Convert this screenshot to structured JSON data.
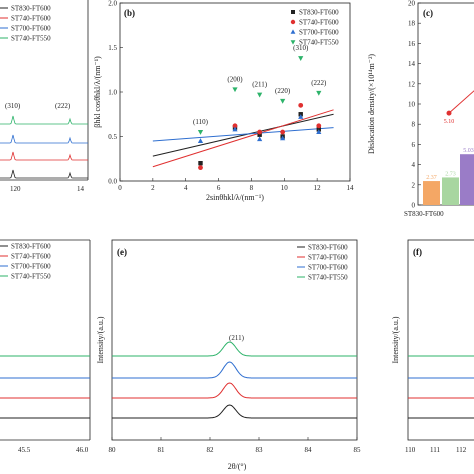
{
  "figure": {
    "panels": {
      "a": {
        "x_ticks": [
          "120",
          "14"
        ],
        "legend": [
          "ST830-FT600",
          "ST740-FT600",
          "ST700-FT600",
          "ST740-FT550"
        ],
        "peak_labels": [
          "(310)",
          "(222)"
        ]
      },
      "b": {
        "label": "(b)",
        "xlabel": "2sinθhkl/λ/(nm⁻¹)",
        "ylabel": "βhkl cosθhkl/λ/(nm⁻¹)",
        "peak_labels": [
          "(110)",
          "(200)",
          "(211)",
          "(220)",
          "(310)",
          "(222)"
        ]
      },
      "c": {
        "label": "(c)",
        "ylabel": "Dislocation density/(×10¹⁴m⁻²)",
        "y_ticks": [
          "0",
          "2",
          "4",
          "6",
          "8",
          "10",
          "12",
          "14",
          "16",
          "18",
          "20"
        ],
        "x_tick": "ST830-FT600"
      },
      "d": {
        "legend": [
          "ST830-FT600",
          "ST740-FT600",
          "ST700-FT600",
          "ST740-FT550"
        ],
        "x_ticks": [
          "45.5",
          "46.0"
        ]
      },
      "e": {
        "label": "(e)",
        "ylabel": "Intensity/(a.u.)",
        "xlabel": "2θ/(°)",
        "x_ticks": [
          "80",
          "81",
          "82",
          "83",
          "84",
          "85"
        ],
        "legend": [
          "ST830-FT600",
          "ST740-FT600",
          "ST700-FT600",
          "ST740-FT550"
        ],
        "peak_label": "(211)"
      },
      "f": {
        "label": "(f)",
        "ylabel": "Intensity/(a.u.)",
        "x_ticks": [
          "110",
          "111",
          "112"
        ]
      }
    }
  },
  "colors": {
    "ST830-FT600": "#222222",
    "ST740-FT600": "#e03030",
    "ST700-FT600": "#2f6fd0",
    "ST740-FT550": "#2db36a",
    "bar_orange": "#f4a765",
    "bar_green": "#a8d6a0",
    "bar_purple": "#9a7cc7"
  },
  "chart_data": [
    {
      "type": "scatter",
      "panel": "b",
      "xlim": [
        0,
        14
      ],
      "ylim": [
        0,
        2.0
      ],
      "x_ticks": [
        0,
        2,
        4,
        6,
        8,
        10,
        12,
        14
      ],
      "y_ticks": [
        0.0,
        0.5,
        1.0,
        1.5,
        2.0
      ],
      "legend_position": "top-right",
      "grid": false,
      "series": [
        {
          "name": "ST830-FT600",
          "marker": "square",
          "x": [
            4.9,
            7.0,
            8.5,
            9.9,
            11.0,
            12.1
          ],
          "y": [
            0.2,
            0.6,
            0.52,
            0.5,
            0.75,
            0.58
          ],
          "fit": [
            [
              2,
              0.28
            ],
            [
              13,
              0.75
            ]
          ]
        },
        {
          "name": "ST740-FT600",
          "marker": "circle",
          "x": [
            4.9,
            7.0,
            8.5,
            9.9,
            11.0,
            12.1
          ],
          "y": [
            0.15,
            0.62,
            0.55,
            0.55,
            0.85,
            0.62
          ],
          "fit": [
            [
              2,
              0.16
            ],
            [
              13,
              0.8
            ]
          ]
        },
        {
          "name": "ST700-FT600",
          "marker": "triangle-up",
          "x": [
            4.9,
            7.0,
            8.5,
            9.9,
            11.0,
            12.1
          ],
          "y": [
            0.45,
            0.58,
            0.47,
            0.48,
            0.72,
            0.55
          ],
          "fit": [
            [
              2,
              0.45
            ],
            [
              13,
              0.6
            ]
          ]
        },
        {
          "name": "ST740-FT550",
          "marker": "triangle-down",
          "x": [
            4.9,
            7.0,
            8.5,
            9.9,
            11.0,
            12.1
          ],
          "y": [
            0.55,
            1.03,
            0.97,
            0.9,
            1.38,
            0.99
          ],
          "fit": null
        }
      ]
    },
    {
      "type": "bar",
      "panel": "c",
      "ylim": [
        0,
        20
      ],
      "categories": [
        "ST830-FT600"
      ],
      "bars": [
        {
          "label": "2.37",
          "value": 2.37,
          "color": "bar_orange"
        },
        {
          "label": "2.73",
          "value": 2.73,
          "color": "bar_green"
        },
        {
          "label": "5.03",
          "value": 5.03,
          "color": "bar_purple"
        }
      ],
      "line_points": [
        {
          "label": "5.10",
          "value": 9.1,
          "pos": 0.5
        },
        {
          "label": "",
          "value": 12.1,
          "pos": 1.05
        }
      ]
    },
    {
      "type": "line",
      "panel": "a",
      "note": "partial XRD patterns, stacked",
      "peaks": [
        {
          "label": "(310)",
          "x": 0.3
        },
        {
          "label": "(222)",
          "x": 0.95
        }
      ]
    },
    {
      "type": "line",
      "panel": "e",
      "xlim": [
        80,
        85
      ],
      "x_ticks": [
        80,
        81,
        82,
        83,
        84,
        85
      ],
      "peak_center": 82.4,
      "series_order_bottom_to_top": [
        "ST830-FT600",
        "ST740-FT600",
        "ST700-FT600",
        "ST740-FT550"
      ]
    }
  ]
}
